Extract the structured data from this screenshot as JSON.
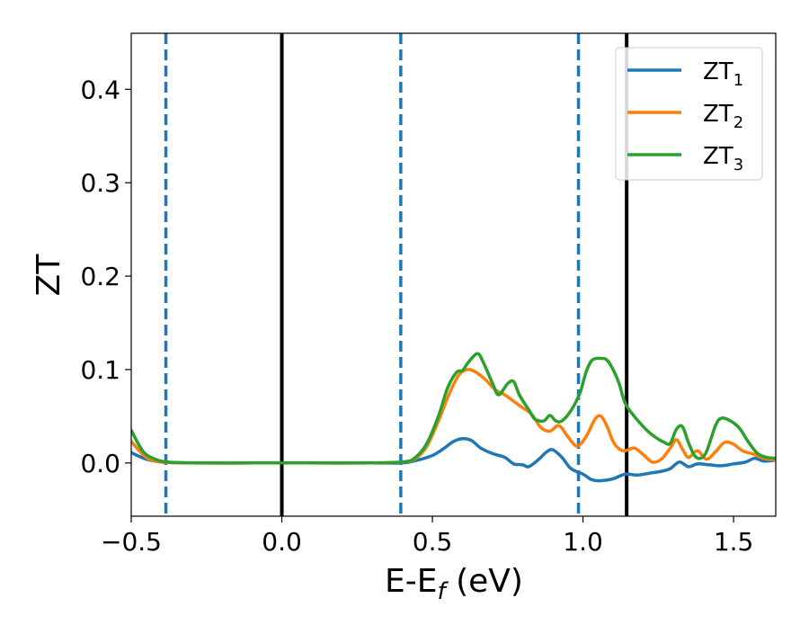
{
  "chart_data": {
    "type": "line",
    "title": "",
    "xlabel": {
      "main": "E-E",
      "sub": "f",
      "unit": " (eV)"
    },
    "ylabel": "ZT",
    "xlim": [
      -0.5,
      1.64
    ],
    "ylim": [
      -0.057,
      0.46
    ],
    "xticks": [
      -0.5,
      0.0,
      0.5,
      1.0,
      1.5
    ],
    "xtick_labels": [
      "−0.5",
      "0.0",
      "0.5",
      "1.0",
      "1.5"
    ],
    "yticks": [
      0.0,
      0.1,
      0.2,
      0.3,
      0.4
    ],
    "ytick_labels": [
      "0.0",
      "0.1",
      "0.2",
      "0.3",
      "0.4"
    ],
    "grid": false,
    "legend_position": "top-right",
    "vlines": [
      {
        "x": -0.385,
        "style": "dashed",
        "color": "#1f77b4"
      },
      {
        "x": 0.0,
        "style": "solid",
        "color": "#000000"
      },
      {
        "x": 0.395,
        "style": "dashed",
        "color": "#1f77b4"
      },
      {
        "x": 0.985,
        "style": "dashed",
        "color": "#1f77b4"
      },
      {
        "x": 1.145,
        "style": "solid",
        "color": "#000000"
      }
    ],
    "series": [
      {
        "name": "ZT",
        "name_sub": "1",
        "color": "#1f77b4",
        "points": [
          [
            -0.5,
            0.011
          ],
          [
            -0.45,
            0.004
          ],
          [
            -0.4,
            0.001
          ],
          [
            -0.3,
            0.0
          ],
          [
            -0.1,
            0.0
          ],
          [
            0.1,
            0.0
          ],
          [
            0.3,
            0.0
          ],
          [
            0.4,
            0.0
          ],
          [
            0.45,
            0.003
          ],
          [
            0.5,
            0.008
          ],
          [
            0.54,
            0.016
          ],
          [
            0.57,
            0.023
          ],
          [
            0.6,
            0.026
          ],
          [
            0.63,
            0.024
          ],
          [
            0.66,
            0.016
          ],
          [
            0.7,
            0.01
          ],
          [
            0.74,
            0.006
          ],
          [
            0.77,
            -0.001
          ],
          [
            0.8,
            -0.002
          ],
          [
            0.82,
            -0.004
          ],
          [
            0.85,
            0.003
          ],
          [
            0.88,
            0.012
          ],
          [
            0.9,
            0.014
          ],
          [
            0.93,
            0.006
          ],
          [
            0.96,
            -0.006
          ],
          [
            1.0,
            -0.012
          ],
          [
            1.03,
            -0.018
          ],
          [
            1.06,
            -0.019
          ],
          [
            1.1,
            -0.017
          ],
          [
            1.14,
            -0.012
          ],
          [
            1.18,
            -0.013
          ],
          [
            1.22,
            -0.011
          ],
          [
            1.26,
            -0.009
          ],
          [
            1.29,
            -0.006
          ],
          [
            1.32,
            0.001
          ],
          [
            1.35,
            -0.004
          ],
          [
            1.38,
            -0.001
          ],
          [
            1.42,
            -0.002
          ],
          [
            1.46,
            -0.003
          ],
          [
            1.5,
            -0.001
          ],
          [
            1.54,
            0.001
          ],
          [
            1.57,
            0.005
          ],
          [
            1.6,
            0.002
          ],
          [
            1.64,
            0.003
          ]
        ]
      },
      {
        "name": "ZT",
        "name_sub": "2",
        "color": "#ff7f0e",
        "points": [
          [
            -0.5,
            0.023
          ],
          [
            -0.45,
            0.006
          ],
          [
            -0.4,
            0.001
          ],
          [
            -0.3,
            0.0
          ],
          [
            -0.1,
            0.0
          ],
          [
            0.1,
            0.0
          ],
          [
            0.3,
            0.0
          ],
          [
            0.4,
            0.001
          ],
          [
            0.44,
            0.004
          ],
          [
            0.48,
            0.017
          ],
          [
            0.52,
            0.045
          ],
          [
            0.56,
            0.077
          ],
          [
            0.59,
            0.095
          ],
          [
            0.62,
            0.1
          ],
          [
            0.65,
            0.096
          ],
          [
            0.68,
            0.088
          ],
          [
            0.71,
            0.078
          ],
          [
            0.74,
            0.073
          ],
          [
            0.77,
            0.066
          ],
          [
            0.8,
            0.059
          ],
          [
            0.83,
            0.052
          ],
          [
            0.86,
            0.038
          ],
          [
            0.89,
            0.034
          ],
          [
            0.92,
            0.04
          ],
          [
            0.95,
            0.028
          ],
          [
            0.98,
            0.018
          ],
          [
            1.01,
            0.028
          ],
          [
            1.04,
            0.047
          ],
          [
            1.06,
            0.05
          ],
          [
            1.08,
            0.039
          ],
          [
            1.1,
            0.023
          ],
          [
            1.12,
            0.015
          ],
          [
            1.14,
            0.013
          ],
          [
            1.17,
            0.016
          ],
          [
            1.2,
            0.009
          ],
          [
            1.23,
            0.001
          ],
          [
            1.26,
            0.004
          ],
          [
            1.29,
            0.016
          ],
          [
            1.31,
            0.025
          ],
          [
            1.33,
            0.015
          ],
          [
            1.35,
            0.006
          ],
          [
            1.38,
            0.013
          ],
          [
            1.41,
            0.004
          ],
          [
            1.44,
            0.012
          ],
          [
            1.47,
            0.022
          ],
          [
            1.5,
            0.02
          ],
          [
            1.53,
            0.013
          ],
          [
            1.57,
            0.009
          ],
          [
            1.6,
            0.005
          ],
          [
            1.64,
            0.003
          ]
        ]
      },
      {
        "name": "ZT",
        "name_sub": "3",
        "color": "#2ca02c",
        "points": [
          [
            -0.5,
            0.035
          ],
          [
            -0.46,
            0.012
          ],
          [
            -0.42,
            0.004
          ],
          [
            -0.38,
            0.001
          ],
          [
            -0.3,
            0.0
          ],
          [
            -0.1,
            0.0
          ],
          [
            0.1,
            0.0
          ],
          [
            0.3,
            0.0
          ],
          [
            0.4,
            0.001
          ],
          [
            0.44,
            0.005
          ],
          [
            0.48,
            0.02
          ],
          [
            0.52,
            0.05
          ],
          [
            0.55,
            0.08
          ],
          [
            0.58,
            0.097
          ],
          [
            0.6,
            0.099
          ],
          [
            0.62,
            0.108
          ],
          [
            0.65,
            0.117
          ],
          [
            0.67,
            0.107
          ],
          [
            0.7,
            0.085
          ],
          [
            0.72,
            0.073
          ],
          [
            0.75,
            0.085
          ],
          [
            0.77,
            0.087
          ],
          [
            0.79,
            0.072
          ],
          [
            0.82,
            0.057
          ],
          [
            0.84,
            0.047
          ],
          [
            0.87,
            0.045
          ],
          [
            0.89,
            0.051
          ],
          [
            0.91,
            0.045
          ],
          [
            0.93,
            0.045
          ],
          [
            0.96,
            0.056
          ],
          [
            0.99,
            0.075
          ],
          [
            1.01,
            0.097
          ],
          [
            1.03,
            0.11
          ],
          [
            1.06,
            0.112
          ],
          [
            1.08,
            0.11
          ],
          [
            1.1,
            0.1
          ],
          [
            1.12,
            0.085
          ],
          [
            1.14,
            0.064
          ],
          [
            1.17,
            0.05
          ],
          [
            1.2,
            0.039
          ],
          [
            1.23,
            0.03
          ],
          [
            1.27,
            0.022
          ],
          [
            1.29,
            0.021
          ],
          [
            1.31,
            0.036
          ],
          [
            1.33,
            0.039
          ],
          [
            1.35,
            0.022
          ],
          [
            1.37,
            0.008
          ],
          [
            1.39,
            0.005
          ],
          [
            1.41,
            0.012
          ],
          [
            1.44,
            0.04
          ],
          [
            1.46,
            0.048
          ],
          [
            1.49,
            0.045
          ],
          [
            1.52,
            0.037
          ],
          [
            1.55,
            0.022
          ],
          [
            1.58,
            0.01
          ],
          [
            1.61,
            0.006
          ],
          [
            1.64,
            0.005
          ]
        ]
      }
    ]
  }
}
